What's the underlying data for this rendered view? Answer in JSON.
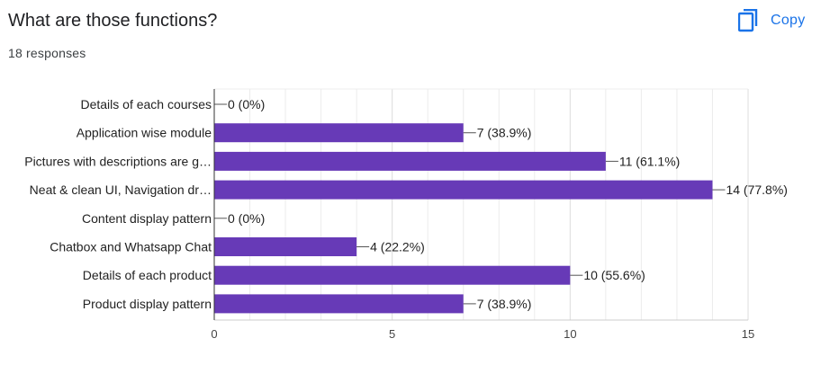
{
  "header": {
    "question_title": "What are those functions?",
    "responses_text": "18 responses",
    "copy_label": "Copy",
    "copy_icon": "copy-icon"
  },
  "colors": {
    "bar": "#673ab7",
    "accent": "#1a73e8",
    "grid": "#ececec"
  },
  "chart_data": {
    "type": "bar",
    "orientation": "horizontal",
    "categories": [
      "Details of each courses",
      "Application wise module",
      "Pictures with descriptions are g…",
      "Neat & clean UI, Navigation dr…",
      "Content display pattern",
      "Chatbox and Whatsapp Chat",
      "Details of each product",
      "Product display pattern"
    ],
    "values": [
      0,
      7,
      11,
      14,
      0,
      4,
      10,
      7
    ],
    "data_labels": [
      "0 (0%)",
      "7 (38.9%)",
      "11 (61.1%)",
      "14 (77.8%)",
      "0 (0%)",
      "4 (22.2%)",
      "10 (55.6%)",
      "7 (38.9%)"
    ],
    "xticks": [
      0,
      5,
      10,
      15
    ],
    "xlim": [
      0,
      15
    ],
    "grid": true,
    "legend": "none"
  }
}
